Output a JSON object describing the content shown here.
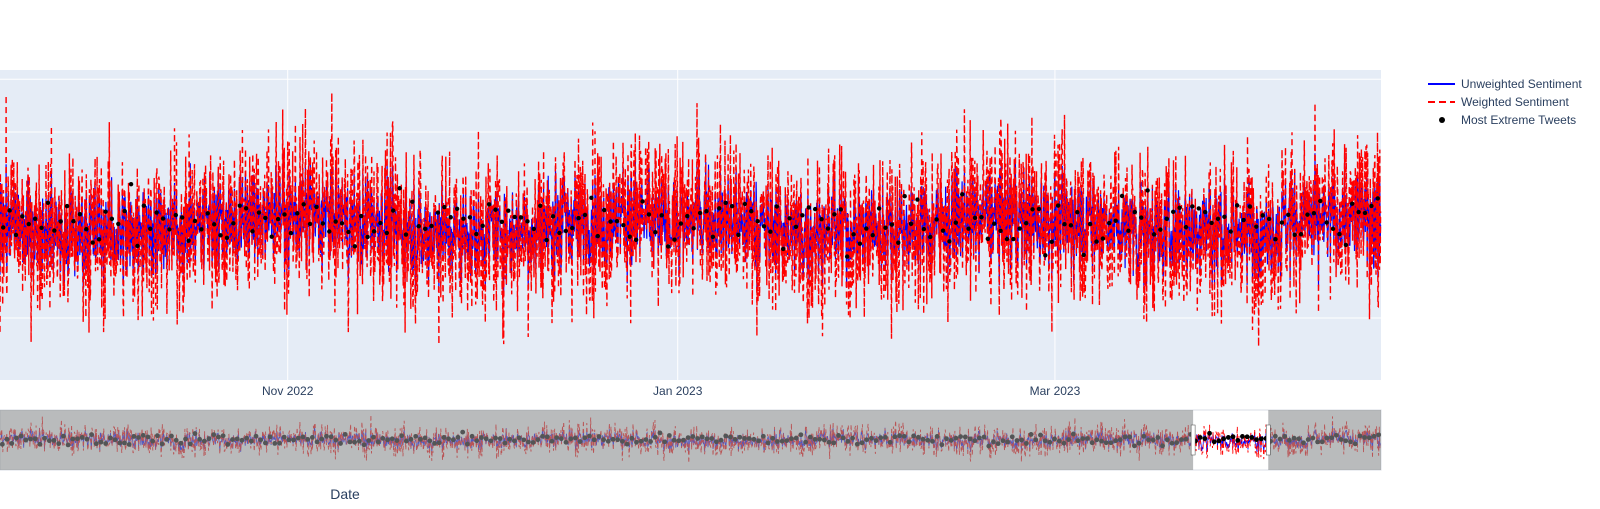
{
  "chart_data": {
    "type": "line",
    "xlabel": "Date",
    "ylabel": "",
    "x_ticks": [
      "Nov 2022",
      "Jan 2023",
      "Mar 2023"
    ],
    "x_tick_dates": [
      "2022-11-01",
      "2023-01-01",
      "2023-03-01"
    ],
    "visible_x_range": [
      "2022-09-17",
      "2023-04-21"
    ],
    "full_x_range": [
      "2022-07-01",
      "2023-04-21"
    ],
    "range_slider": true,
    "range_slider_selection": [
      "2023-03-12",
      "2023-03-28"
    ],
    "grid": true,
    "legend_position": "top-right",
    "series": [
      {
        "name": "Unweighted Sentiment",
        "mode": "lines",
        "color": "#0000ff",
        "dash": "solid"
      },
      {
        "name": "Weighted Sentiment",
        "mode": "lines",
        "color": "#ff0000",
        "dash": "dashed"
      },
      {
        "name": "Most Extreme Tweets",
        "mode": "markers",
        "color": "#000000"
      }
    ],
    "colors": {
      "plot_background": "#e5ecf6",
      "range_slider_mask": "#8a8d90",
      "slider_handle": "#ffffff"
    }
  }
}
